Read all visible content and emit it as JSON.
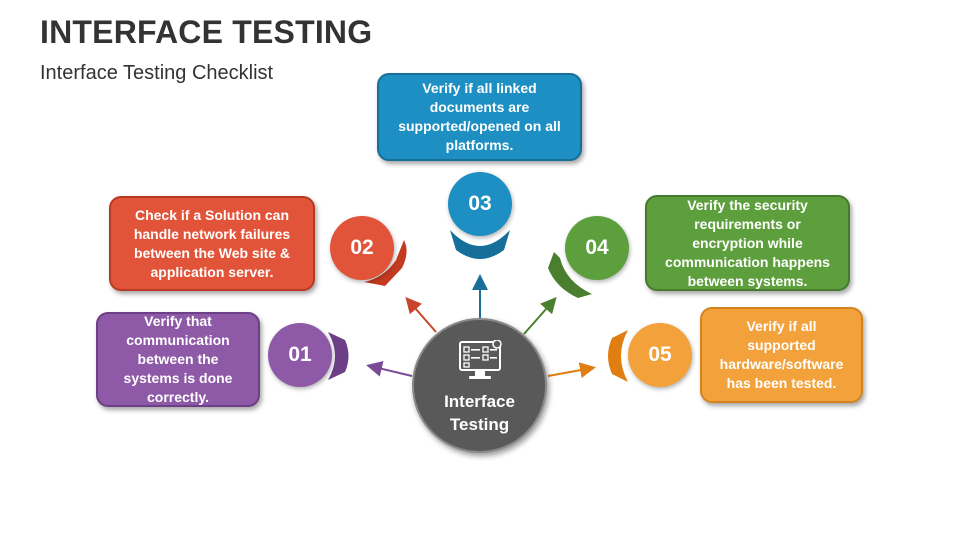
{
  "header": {
    "title": "INTERFACE TESTING",
    "subtitle": "Interface Testing Checklist"
  },
  "center": {
    "line1": "Interface",
    "line2": "Testing",
    "icon": "checklist-monitor-icon"
  },
  "steps": [
    {
      "number": "01",
      "text": "Verify that communication between the systems is done correctly.",
      "color": "#8e5aa8"
    },
    {
      "number": "02",
      "text": "Check if a Solution can handle network failures between the Web site & application server.",
      "color": "#e2543a"
    },
    {
      "number": "03",
      "text": "Verify if all linked documents are supported/opened on all platforms.",
      "color": "#1d8fc2"
    },
    {
      "number": "04",
      "text": "Verify the security requirements or encryption while communication happens between systems.",
      "color": "#5e9f3d"
    },
    {
      "number": "05",
      "text": "Verify if all supported hardware/software has been tested.",
      "color": "#f3a13a"
    }
  ]
}
